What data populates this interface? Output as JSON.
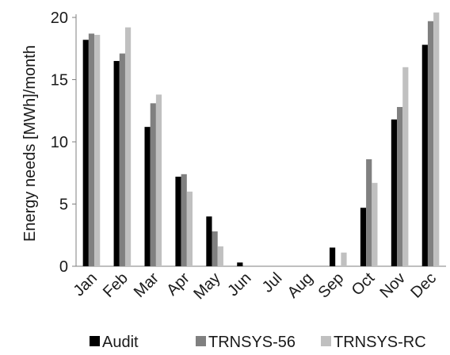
{
  "chart_data": {
    "type": "bar",
    "ylabel": "Energy needs [MWh]/month",
    "xlabel": "",
    "ylim": [
      0,
      20
    ],
    "yticks": [
      0,
      5,
      10,
      15,
      20
    ],
    "grid": false,
    "legend_position": "bottom",
    "categories": [
      "Jan",
      "Feb",
      "Mar",
      "Apr",
      "May",
      "Jun",
      "Jul",
      "Aug",
      "Sep",
      "Oct",
      "Nov",
      "Dec"
    ],
    "series": [
      {
        "name": "Audit",
        "color": "#000000",
        "values": [
          18.2,
          16.5,
          11.2,
          7.2,
          4.0,
          0.3,
          0,
          0,
          1.5,
          4.7,
          11.8,
          17.8
        ]
      },
      {
        "name": "TRNSYS-56",
        "color": "#808080",
        "values": [
          18.7,
          17.1,
          13.1,
          7.4,
          2.8,
          0,
          0,
          0,
          0,
          8.6,
          12.8,
          19.7
        ]
      },
      {
        "name": "TRNSYS-RC",
        "color": "#c0c0c0",
        "values": [
          18.6,
          19.2,
          13.8,
          6.0,
          1.6,
          0,
          0,
          0,
          1.1,
          6.7,
          16.0,
          20.4
        ]
      }
    ]
  }
}
